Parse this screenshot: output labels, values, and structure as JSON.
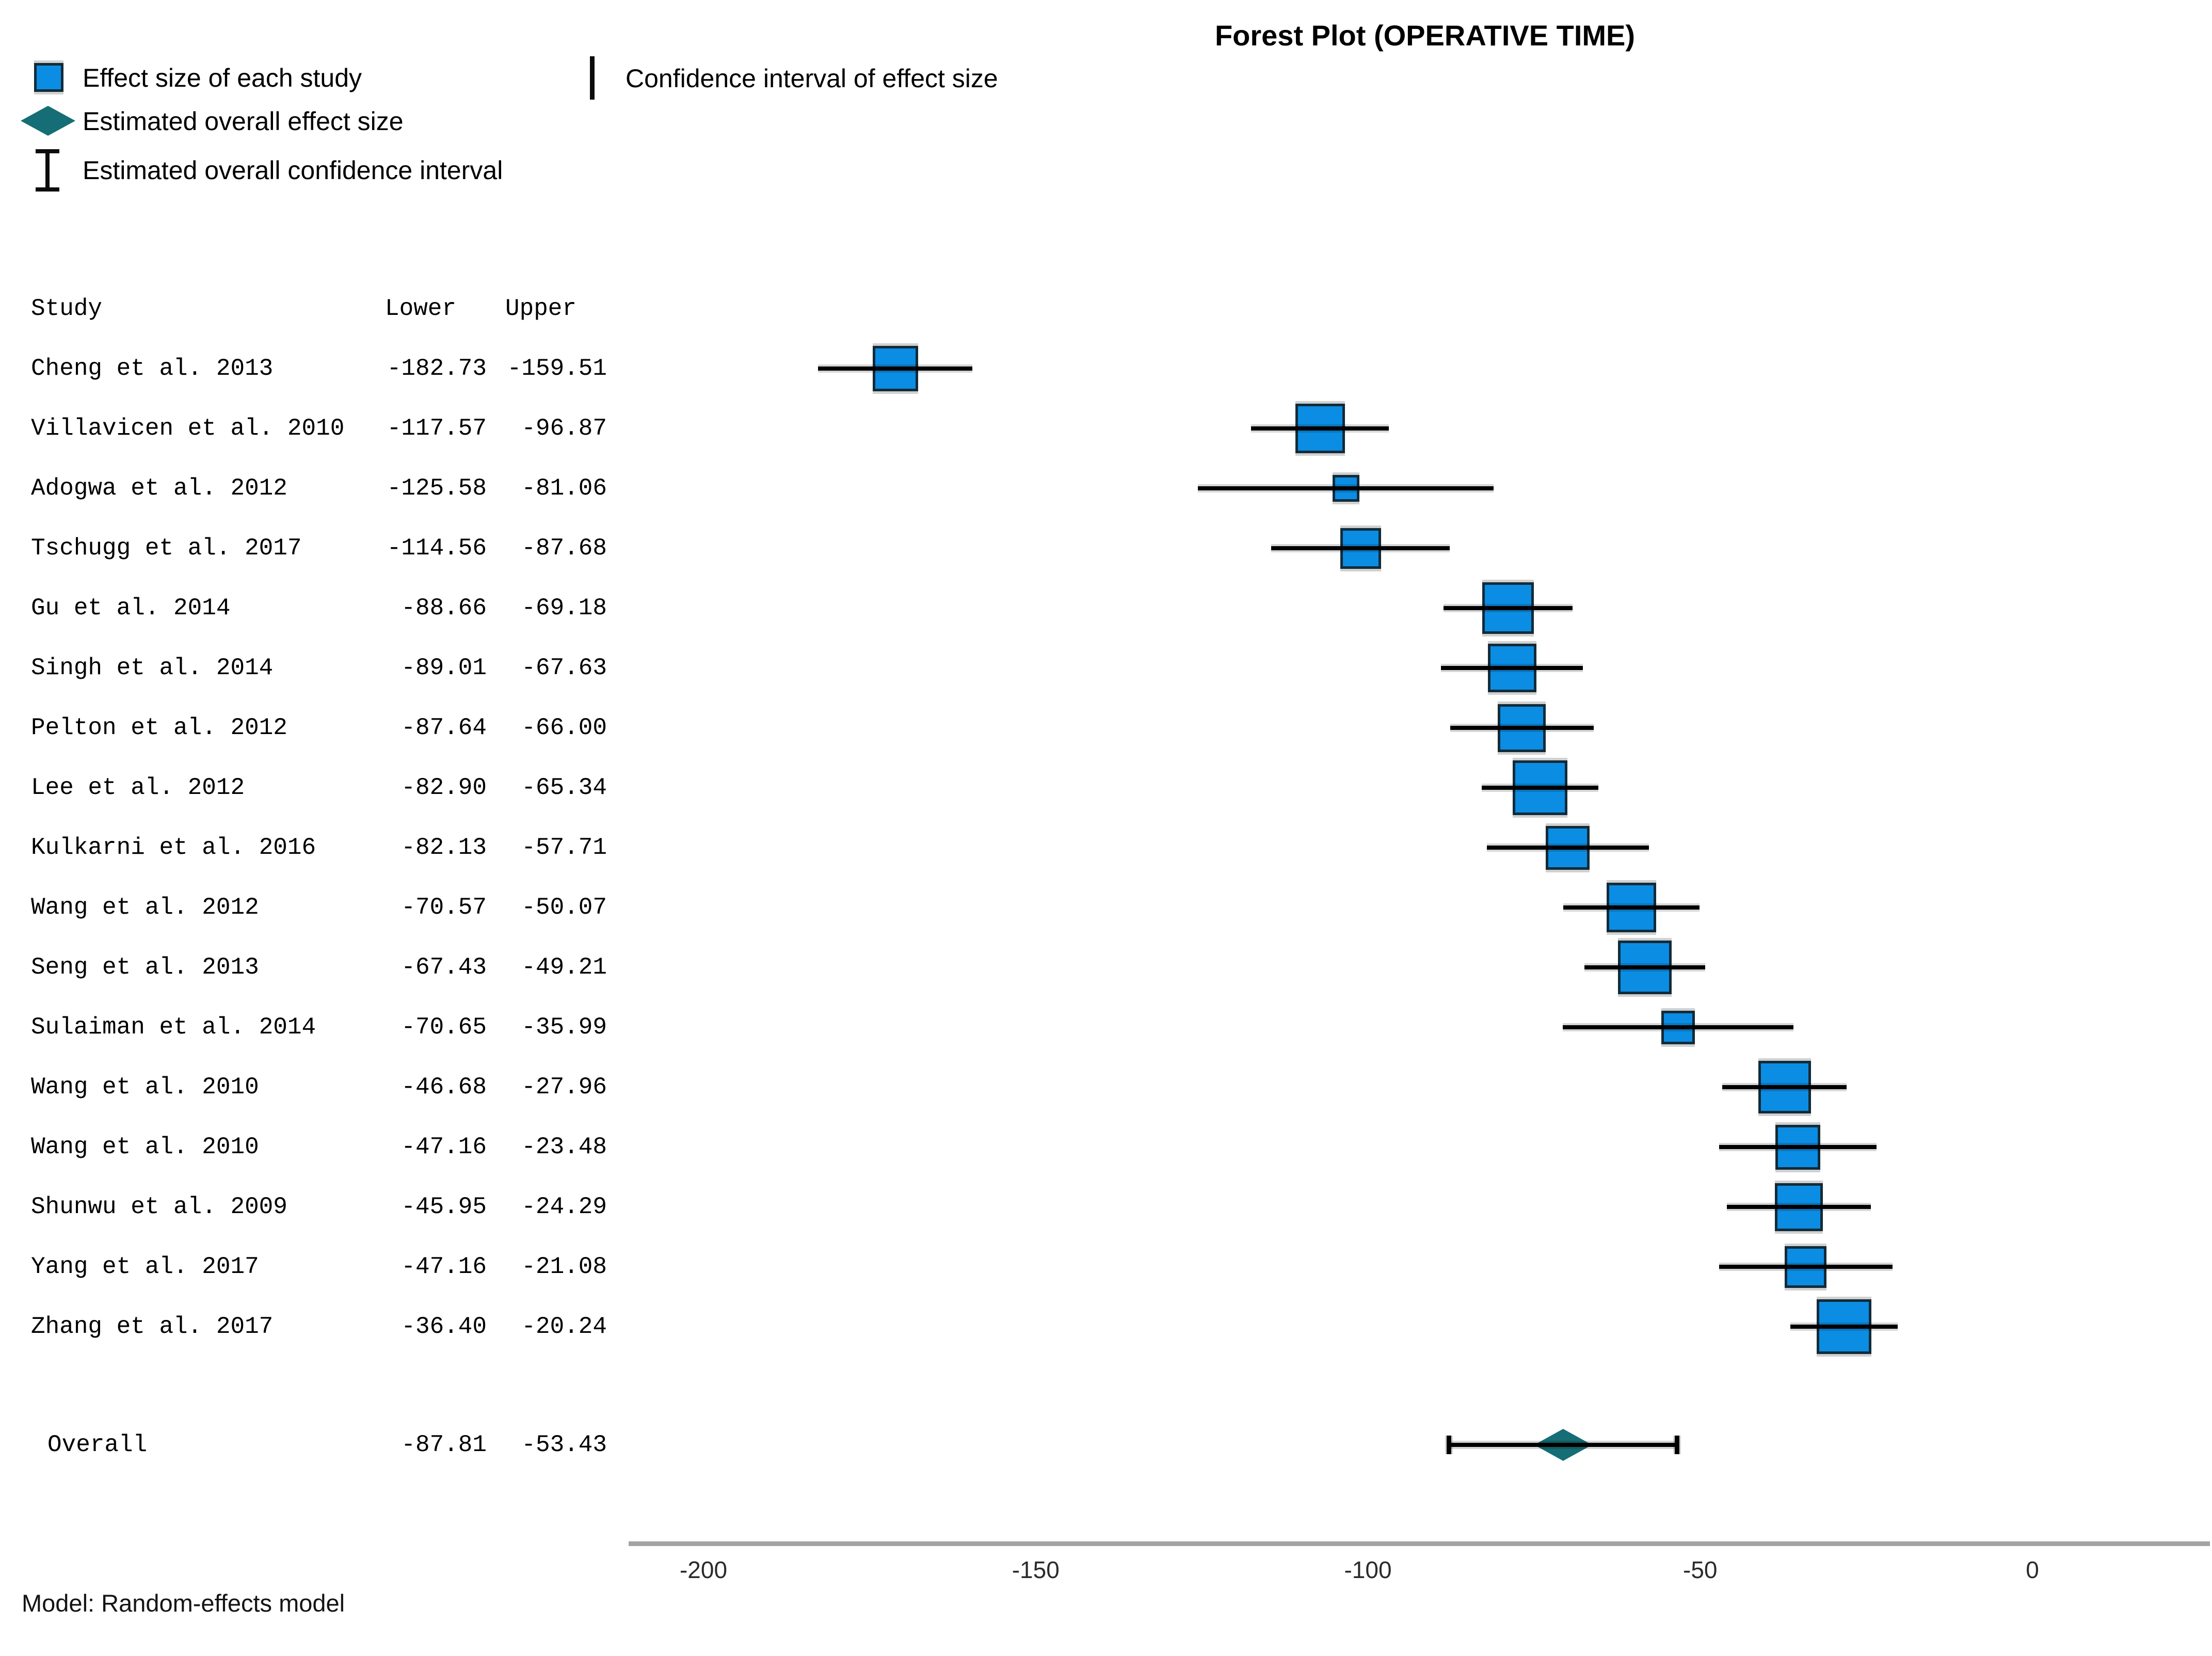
{
  "title": "Forest Plot (OPERATIVE TIME)",
  "legend": {
    "items": [
      {
        "symbol": "square-marker",
        "label": "Effect size of each study"
      },
      {
        "symbol": "diamond-marker",
        "label": "Estimated overall effect size"
      },
      {
        "symbol": "ibeam-marker",
        "label": "Estimated overall confidence interval"
      },
      {
        "symbol": "ci-line",
        "label": "Confidence interval of effect size"
      }
    ]
  },
  "table": {
    "headers": [
      "Study",
      "Lower",
      "Upper"
    ]
  },
  "chart_data": {
    "type": "forest",
    "title": "Forest Plot (OPERATIVE TIME)",
    "xaxis_ticks": [
      -200,
      -150,
      -100,
      -50,
      0
    ],
    "xaxis_range": [
      -211,
      27
    ],
    "grid": false,
    "studies": [
      {
        "name": "Cheng et al. 2013",
        "lower": -182.73,
        "upper": -159.51
      },
      {
        "name": "Villavicen et al. 2010",
        "lower": -117.57,
        "upper": -96.87
      },
      {
        "name": "Adogwa et al. 2012",
        "lower": -125.58,
        "upper": -81.06
      },
      {
        "name": "Tschugg et al. 2017",
        "lower": -114.56,
        "upper": -87.68
      },
      {
        "name": "Gu et al. 2014",
        "lower": -88.66,
        "upper": -69.18
      },
      {
        "name": "Singh et al. 2014",
        "lower": -89.01,
        "upper": -67.63
      },
      {
        "name": "Pelton et al. 2012",
        "lower": -87.64,
        "upper": -66.0
      },
      {
        "name": "Lee et al. 2012",
        "lower": -82.9,
        "upper": -65.34
      },
      {
        "name": "Kulkarni et al. 2016",
        "lower": -82.13,
        "upper": -57.71
      },
      {
        "name": "Wang et al. 2012",
        "lower": -70.57,
        "upper": -50.07
      },
      {
        "name": "Seng et al. 2013",
        "lower": -67.43,
        "upper": -49.21
      },
      {
        "name": "Sulaiman et al. 2014",
        "lower": -70.65,
        "upper": -35.99
      },
      {
        "name": "Wang et al. 2010",
        "lower": -46.68,
        "upper": -27.96
      },
      {
        "name": "Wang et al. 2010",
        "lower": -47.16,
        "upper": -23.48
      },
      {
        "name": "Shunwu et al. 2009",
        "lower": -45.95,
        "upper": -24.29
      },
      {
        "name": "Yang et al. 2017",
        "lower": -47.16,
        "upper": -21.08
      },
      {
        "name": "Zhang et al. 2017",
        "lower": -36.4,
        "upper": -20.24
      }
    ],
    "overall": {
      "name": "Overall",
      "lower": -87.81,
      "upper": -53.43
    }
  },
  "footer": {
    "model_note": "Model: Random-effects model"
  },
  "colors": {
    "effect_marker": "#0b8de4",
    "marker_border": "#122b38",
    "overall_diamond": "#156e75",
    "ci_line": "#000000",
    "axis_line": "#a3a3a3",
    "tick_label": "#2b2b2b"
  }
}
